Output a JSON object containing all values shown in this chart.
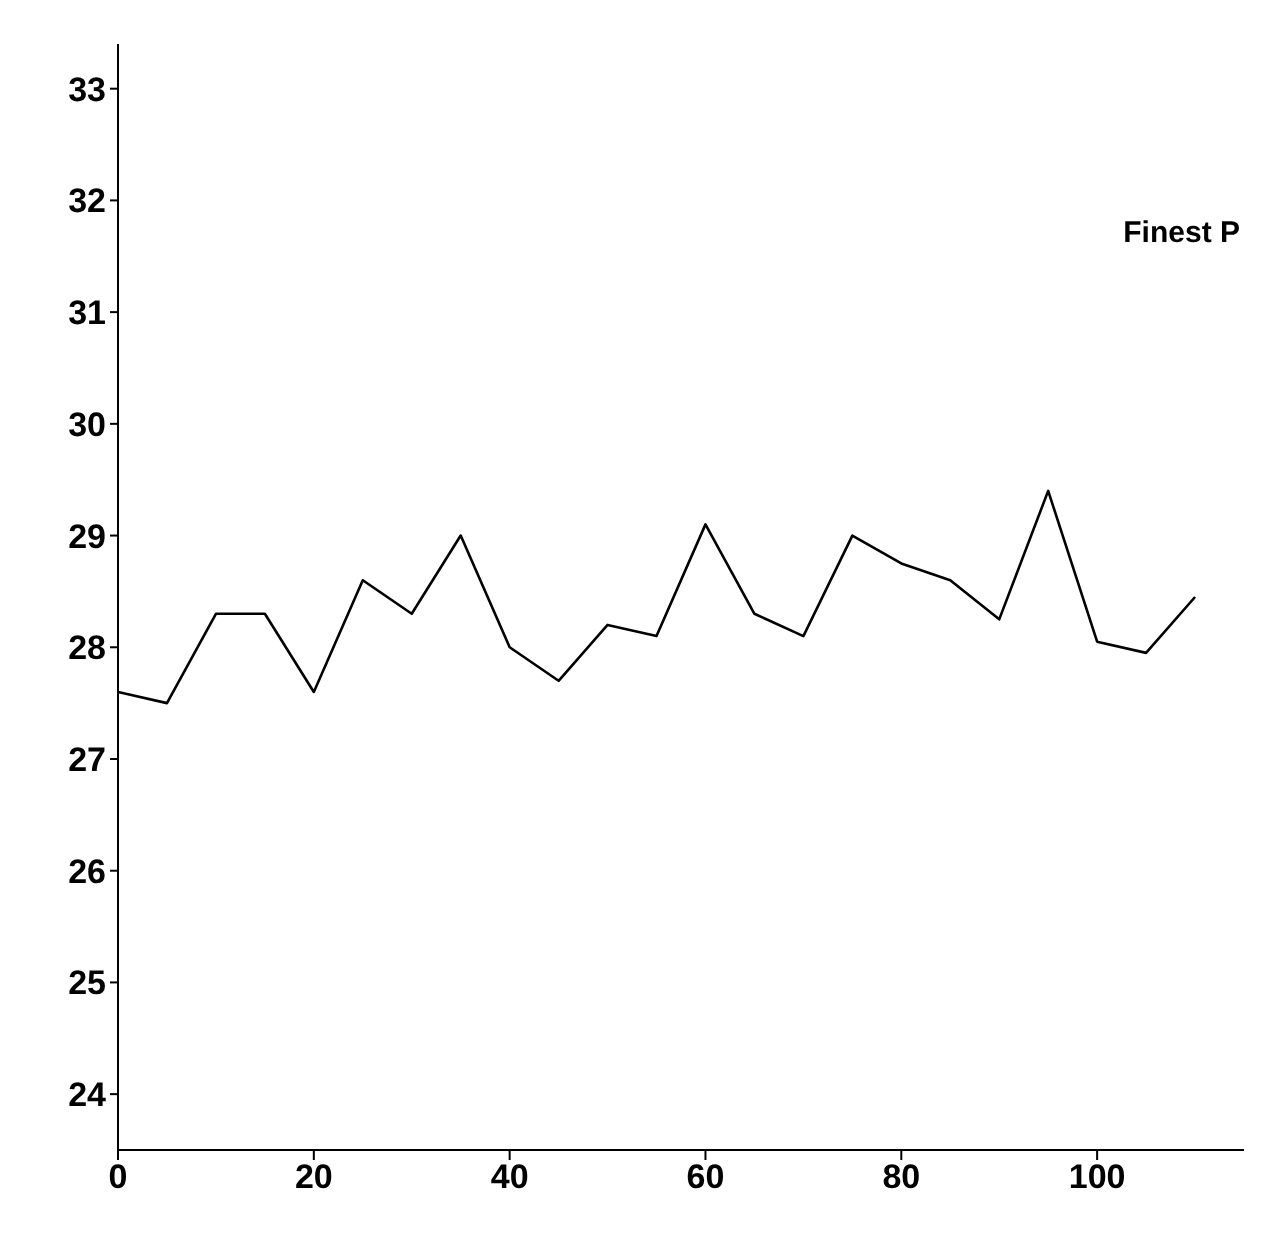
{
  "chart_data": {
    "type": "line",
    "x": [
      0,
      5,
      10,
      15,
      20,
      25,
      30,
      35,
      40,
      45,
      50,
      55,
      60,
      65,
      70,
      75,
      80,
      85,
      90,
      95,
      100,
      105,
      110
    ],
    "values": [
      27.6,
      27.5,
      28.3,
      28.3,
      27.6,
      28.6,
      28.3,
      29.0,
      28.0,
      27.7,
      28.2,
      28.1,
      29.1,
      28.3,
      28.1,
      29.0,
      28.75,
      28.6,
      28.25,
      29.4,
      28.05,
      27.95,
      28.45
    ],
    "color": "#000000",
    "xlim": [
      0,
      115
    ],
    "xticks": [
      0,
      20,
      40,
      60,
      80,
      100
    ],
    "ylim": [
      23.5,
      33.4
    ],
    "yticks": [
      24,
      25,
      26,
      27,
      28,
      29,
      30,
      31,
      32,
      33
    ],
    "grid": false,
    "marker": "none",
    "line_style": "solid",
    "annotations": [
      "Finest P"
    ]
  }
}
